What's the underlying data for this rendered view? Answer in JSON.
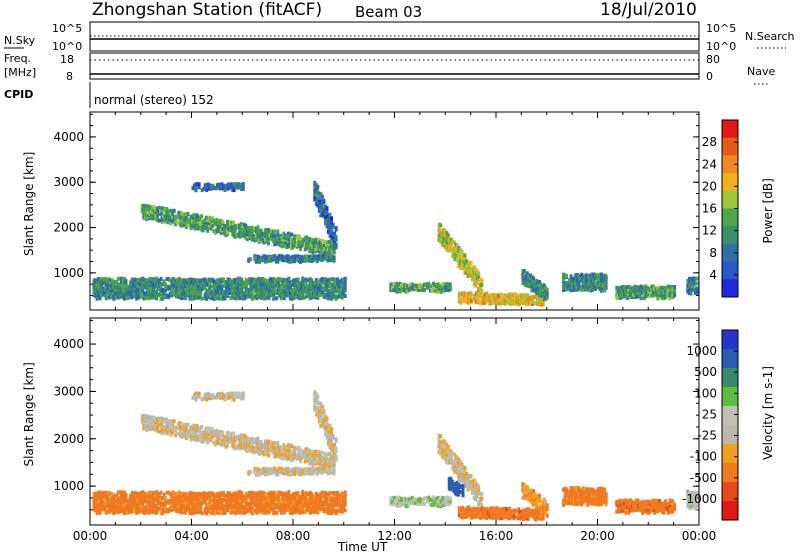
{
  "header": {
    "station": "Zhongshan Station (fitACF)",
    "beam": "Beam 03",
    "date": "18/Jul/2010"
  },
  "aux_panel": {
    "nsky_label": "N.Sky",
    "nsky_ticks": [
      "10^5",
      "10^0"
    ],
    "nsearch_ticks": [
      "10^5",
      "10^0"
    ],
    "nsearch_label": "N.Search",
    "freq_label": "Freq.",
    "freq_unit": "[MHz]",
    "freq_ticks": [
      "18",
      "8"
    ],
    "nave_ticks": [
      "80",
      "0"
    ],
    "nave_label": "Nave",
    "cpid_label": "CPID",
    "cpid_value": "normal (stereo) 152"
  },
  "colors": {
    "power_scale": [
      "#1f2bd8",
      "#2a58c8",
      "#2f6ea8",
      "#3a8e6a",
      "#4aa84a",
      "#9cc83a",
      "#f0b020",
      "#f08a20",
      "#e85a18",
      "#e01818"
    ],
    "velocity_scale": [
      "#2436c8",
      "#2a5cb0",
      "#3a8a6a",
      "#5cbc3c",
      "#c0c0b4",
      "#b8b8ac",
      "#f0a020",
      "#f07820",
      "#e84818",
      "#e01818"
    ],
    "velocity_ground": "#c0c0b4"
  },
  "chart_data": [
    {
      "type": "heatmap",
      "name": "power",
      "ylabel": "Slant Range [km]",
      "xlabel": "",
      "colorbar_label": "Power [dB]",
      "colorbar_ticks": [
        "28",
        "24",
        "20",
        "16",
        "12",
        "8",
        "4"
      ],
      "colorbar_range": [
        0,
        32
      ],
      "ylim": [
        180,
        4550
      ],
      "yticks": [
        "4000",
        "3000",
        "2000",
        "1000"
      ],
      "xlim": [
        0,
        24
      ],
      "regions": [
        {
          "t0": 2.0,
          "t1": 9.6,
          "r_start": 2350,
          "r_end": 1500,
          "width": 300,
          "level": 12
        },
        {
          "t0": 6.2,
          "t1": 9.6,
          "r_start": 1300,
          "r_end": 1300,
          "width": 120,
          "level": 8
        },
        {
          "t0": 8.8,
          "t1": 9.7,
          "r_start": 2800,
          "r_end": 1700,
          "width": 500,
          "level": 6
        },
        {
          "t0": 4.0,
          "t1": 6.0,
          "r_start": 2900,
          "r_end": 2900,
          "width": 150,
          "level": 6
        },
        {
          "t0": 0.1,
          "t1": 10.0,
          "r_start": 650,
          "r_end": 650,
          "width": 450,
          "level": 10
        },
        {
          "t0": 11.8,
          "t1": 14.2,
          "r_start": 680,
          "r_end": 680,
          "width": 200,
          "level": 12
        },
        {
          "t0": 13.7,
          "t1": 15.4,
          "r_start": 1900,
          "r_end": 700,
          "width": 400,
          "level": 18
        },
        {
          "t0": 14.5,
          "t1": 17.8,
          "r_start": 450,
          "r_end": 400,
          "width": 220,
          "level": 20
        },
        {
          "t0": 17.0,
          "t1": 18.0,
          "r_start": 900,
          "r_end": 500,
          "width": 300,
          "level": 10
        },
        {
          "t0": 18.6,
          "t1": 20.3,
          "r_start": 780,
          "r_end": 780,
          "width": 350,
          "level": 10
        },
        {
          "t0": 20.7,
          "t1": 23.0,
          "r_start": 560,
          "r_end": 560,
          "width": 250,
          "level": 12
        },
        {
          "t0": 23.5,
          "t1": 23.9,
          "r_start": 700,
          "r_end": 700,
          "width": 350,
          "level": 8
        }
      ]
    },
    {
      "type": "heatmap",
      "name": "velocity",
      "ylabel": "Slant Range [km]",
      "xlabel": "Time UT",
      "colorbar_label": "Velocity [m s-1]",
      "colorbar_ticks": [
        "1000",
        "500",
        "100",
        "25",
        "-25",
        "-100",
        "-500",
        "-1000"
      ],
      "ylim": [
        180,
        4550
      ],
      "yticks": [
        "4000",
        "3000",
        "2000",
        "1000"
      ],
      "xlim": [
        0,
        24
      ],
      "xticks": [
        "00:00",
        "04:00",
        "08:00",
        "12:00",
        "16:00",
        "20:00",
        "00:00"
      ],
      "regions": [
        {
          "t0": 2.0,
          "t1": 9.6,
          "r_start": 2350,
          "r_end": 1500,
          "width": 300,
          "velocity": 0
        },
        {
          "t0": 6.2,
          "t1": 9.6,
          "r_start": 1300,
          "r_end": 1300,
          "width": 120,
          "velocity": 0
        },
        {
          "t0": 8.8,
          "t1": 9.7,
          "r_start": 2800,
          "r_end": 1700,
          "width": 500,
          "velocity": 0
        },
        {
          "t0": 4.0,
          "t1": 6.0,
          "r_start": 2900,
          "r_end": 2900,
          "width": 150,
          "velocity": 0
        },
        {
          "t0": 0.1,
          "t1": 10.0,
          "r_start": 650,
          "r_end": 650,
          "width": 450,
          "velocity": -150
        },
        {
          "t0": 11.8,
          "t1": 14.2,
          "r_start": 680,
          "r_end": 680,
          "width": 200,
          "velocity": 80
        },
        {
          "t0": 13.7,
          "t1": 15.4,
          "r_start": 1900,
          "r_end": 700,
          "width": 400,
          "velocity": 0
        },
        {
          "t0": 14.1,
          "t1": 14.7,
          "r_start": 1050,
          "r_end": 850,
          "width": 260,
          "velocity": 700
        },
        {
          "t0": 14.5,
          "t1": 17.8,
          "r_start": 450,
          "r_end": 400,
          "width": 220,
          "velocity": -200
        },
        {
          "t0": 17.0,
          "t1": 18.0,
          "r_start": 900,
          "r_end": 500,
          "width": 300,
          "velocity": -80
        },
        {
          "t0": 18.6,
          "t1": 20.3,
          "r_start": 780,
          "r_end": 780,
          "width": 350,
          "velocity": -150
        },
        {
          "t0": 20.7,
          "t1": 23.0,
          "r_start": 560,
          "r_end": 560,
          "width": 250,
          "velocity": -200
        },
        {
          "t0": 23.5,
          "t1": 23.9,
          "r_start": 700,
          "r_end": 700,
          "width": 350,
          "velocity": 50
        }
      ]
    }
  ]
}
